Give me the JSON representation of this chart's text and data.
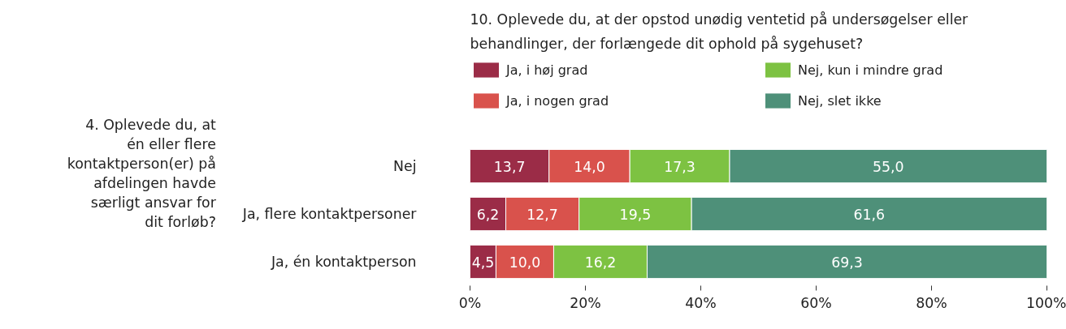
{
  "chart_data": {
    "type": "bar",
    "orientation": "horizontal",
    "stacked": true,
    "title": "10. Oplevede du, at der opstod unødig ventetid på undersøgelser eller behandlinger, der forlængede dit ophold på sygehuset?",
    "ylabel": "4. Oplevede du, at én eller flere kontaktperson(er) på afdelingen havde særligt ansvar for dit forløb?",
    "categories": [
      "Nej",
      "Ja, flere kontaktpersoner",
      "Ja, én kontaktperson"
    ],
    "series": [
      {
        "name": "Ja, i høj grad",
        "color": "#9b2c47",
        "values": [
          13.7,
          6.2,
          4.5
        ],
        "value_labels": [
          "13,7",
          "6,2",
          "4,5"
        ]
      },
      {
        "name": "Ja, i nogen grad",
        "color": "#d9524c",
        "values": [
          14.0,
          12.7,
          10.0
        ],
        "value_labels": [
          "14,0",
          "12,7",
          "10,0"
        ]
      },
      {
        "name": "Nej, kun i mindre grad",
        "color": "#7dc242",
        "values": [
          17.3,
          19.5,
          16.2
        ],
        "value_labels": [
          "17,3",
          "19,5",
          "16,2"
        ]
      },
      {
        "name": "Nej, slet ikke",
        "color": "#4e9079",
        "values": [
          55.0,
          61.6,
          69.3
        ],
        "value_labels": [
          "55,0",
          "61,6",
          "69,3"
        ]
      }
    ],
    "xlim": [
      0,
      100
    ],
    "xticks": [
      {
        "value": 0,
        "label": "0%"
      },
      {
        "value": 20,
        "label": "20%"
      },
      {
        "value": 40,
        "label": "40%"
      },
      {
        "value": 60,
        "label": "60%"
      },
      {
        "value": 80,
        "label": "80%"
      },
      {
        "value": 100,
        "label": "100%"
      }
    ],
    "legend": "top"
  }
}
